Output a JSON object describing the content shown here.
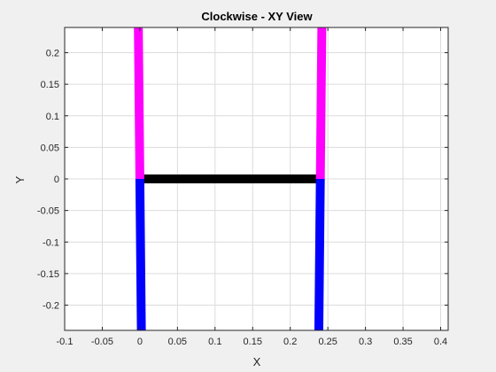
{
  "chart_data": {
    "type": "line",
    "title": "Clockwise - XY View",
    "xlabel": "X",
    "ylabel": "Y",
    "xlim": [
      -0.1,
      0.41
    ],
    "ylim": [
      -0.24,
      0.24
    ],
    "grid": true,
    "x_ticks": [
      "-0.1",
      "-0.05",
      "0",
      "0.05",
      "0.1",
      "0.15",
      "0.2",
      "0.25",
      "0.3",
      "0.35",
      "0.4"
    ],
    "x_tick_values": [
      -0.1,
      -0.05,
      0,
      0.05,
      0.1,
      0.15,
      0.2,
      0.25,
      0.3,
      0.35,
      0.4
    ],
    "y_ticks": [
      "-0.2",
      "-0.15",
      "-0.1",
      "-0.05",
      "0",
      "0.05",
      "0.1",
      "0.15",
      "0.2"
    ],
    "y_tick_values": [
      -0.2,
      -0.15,
      -0.1,
      -0.05,
      0,
      0.05,
      0.1,
      0.15,
      0.2
    ],
    "segments": [
      {
        "color": "#000000",
        "x": [
          0.005,
          0.235
        ],
        "y": [
          0,
          0
        ]
      },
      {
        "color": "#ff00ff",
        "x": [
          -0.002,
          0.0
        ],
        "y": [
          0.24,
          0.0
        ]
      },
      {
        "color": "#0000ff",
        "x": [
          0.0,
          0.002
        ],
        "y": [
          0.0,
          -0.24
        ]
      },
      {
        "color": "#ff00ff",
        "x": [
          0.24,
          0.242
        ],
        "y": [
          0.0,
          0.24
        ]
      },
      {
        "color": "#0000ff",
        "x": [
          0.24,
          0.238
        ],
        "y": [
          0.0,
          -0.24
        ]
      }
    ]
  }
}
